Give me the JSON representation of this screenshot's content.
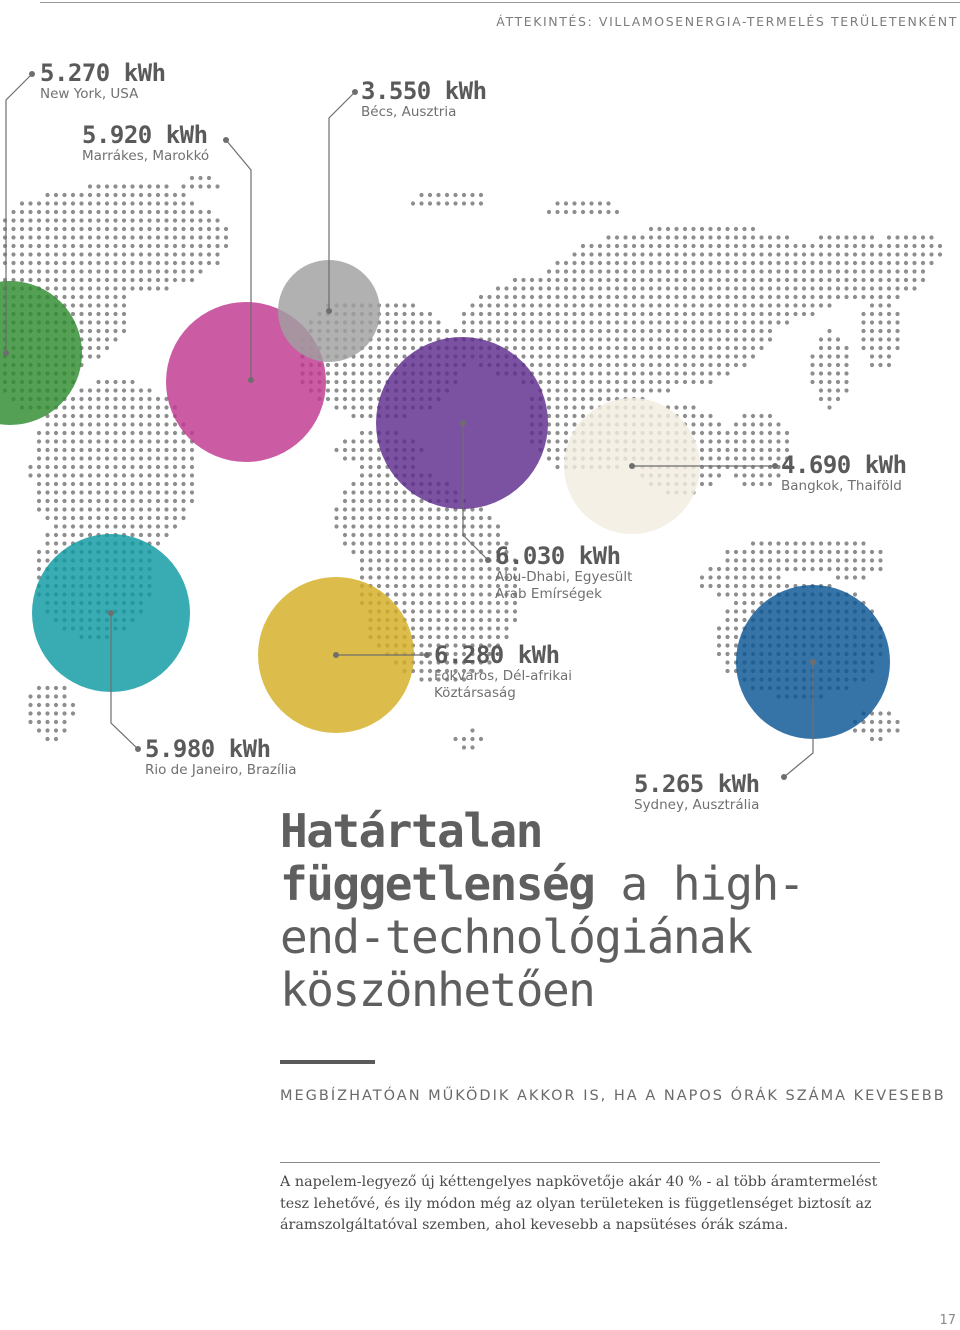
{
  "header": {
    "section_title": "ÁTTEKINTÉS: VILLAMOSENERGIA-TERMELÉS TERÜLETENKÉNT"
  },
  "map": {
    "dot_color": "#8e8e8e"
  },
  "locations": [
    {
      "value": "5.270 kWh",
      "city": "New York, USA",
      "color": "#2e8b2e"
    },
    {
      "value": "5.920 kWh",
      "city": "Marrákes, Marokkó",
      "color": "#c0388f"
    },
    {
      "value": "3.550 kWh",
      "city": "Bécs, Ausztria",
      "color": "#a0a0a0"
    },
    {
      "value": "6.030 kWh",
      "city": [
        "Abu-Dhabi, Egyesült",
        "Arab Emírségek"
      ],
      "color": "#5e2b8c"
    },
    {
      "value": "4.690 kWh",
      "city": "Bangkok, Thaiföld",
      "color": "#f3ede0"
    },
    {
      "value": "6.280 kWh",
      "city": [
        "Fokváros, Dél-afrikai",
        "Köztársaság"
      ],
      "color": "#d4ae23"
    },
    {
      "value": "5.980 kWh",
      "city": "Rio de Janeiro, Brazília",
      "color": "#0e9aa2"
    },
    {
      "value": "5.265 kWh",
      "city": "Sydney, Ausztrália",
      "color": "#0a5594"
    }
  ],
  "headline": {
    "line1_bold": "Határtalan",
    "line2_bold": "függetlenség",
    "line2_rest": " a high-",
    "line3": "end-technológiának",
    "line4": "köszönhetően"
  },
  "subheading": "MEGBÍZHATÓAN MŰKÖDIK AKKOR IS, HA A NAPOS ÓRÁK SZÁMA KEVESEBB",
  "body_text": "A napelem-legyező új kéttengelyes napkövetője akár 40 % - al több áramtermelést tesz lehetővé, és ily módon még az olyan területeken is függetlenséget biztosít az áramszolgáltatóval szemben, ahol kevesebb a napsütéses órák száma.",
  "page_number": "17"
}
